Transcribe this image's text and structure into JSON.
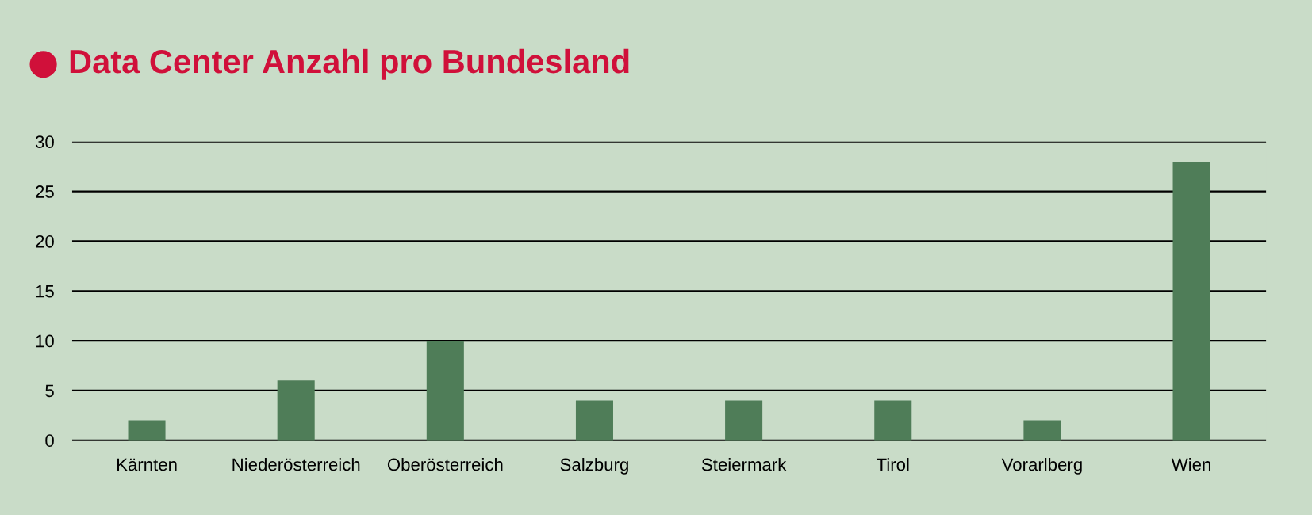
{
  "chart_data": {
    "type": "bar",
    "title": "Data Center Anzahl pro Bundesland",
    "categories": [
      "Kärnten",
      "Niederösterreich",
      "Oberösterreich",
      "Salzburg",
      "Steiermark",
      "Tirol",
      "Vorarlberg",
      "Wien"
    ],
    "values": [
      2,
      6,
      10,
      4,
      4,
      4,
      2,
      28
    ],
    "color": "#4f7d58",
    "ylim": [
      0,
      30
    ],
    "yticks": [
      0,
      5,
      10,
      15,
      20,
      25,
      30
    ],
    "grid": "y"
  }
}
